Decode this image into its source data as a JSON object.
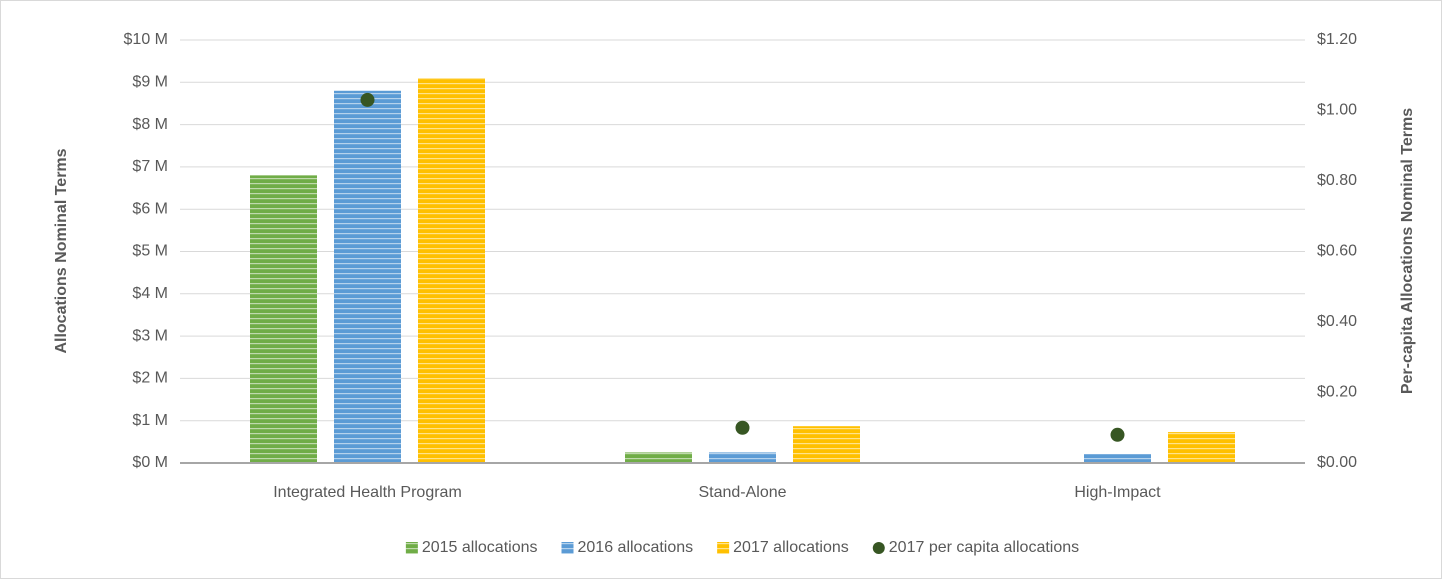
{
  "chart_data": {
    "type": "bar",
    "categories": [
      "Integrated Health Program",
      "Stand-Alone",
      "High-Impact"
    ],
    "series": [
      {
        "name": "2015 allocations",
        "color": "#70ad47",
        "type": "bar",
        "values": [
          6.8,
          0.25,
          null
        ]
      },
      {
        "name": "2016 allocations",
        "color": "#5b9bd5",
        "type": "bar",
        "values": [
          8.8,
          0.25,
          0.21
        ]
      },
      {
        "name": "2017 allocations",
        "color": "#ffc000",
        "type": "bar",
        "values": [
          9.1,
          0.87,
          0.73
        ]
      },
      {
        "name": "2017 per capita allocations",
        "color": "#375623",
        "type": "scatter",
        "axis": "y2",
        "values": [
          1.03,
          0.1,
          0.08
        ]
      }
    ],
    "ylabel": "Allocations Nominal Terms",
    "y2label": "Per-capita Allocations Nominal Terms",
    "ylim": [
      0,
      10
    ],
    "yticks": [
      {
        "value": 0,
        "label": "$0 M"
      },
      {
        "value": 1,
        "label": "$1 M"
      },
      {
        "value": 2,
        "label": "$2 M"
      },
      {
        "value": 3,
        "label": "$3 M"
      },
      {
        "value": 4,
        "label": "$4 M"
      },
      {
        "value": 5,
        "label": "$5 M"
      },
      {
        "value": 6,
        "label": "$6 M"
      },
      {
        "value": 7,
        "label": "$7 M"
      },
      {
        "value": 8,
        "label": "$8 M"
      },
      {
        "value": 9,
        "label": "$9 M"
      },
      {
        "value": 10,
        "label": "$10 M"
      }
    ],
    "y2lim": [
      0,
      1.2
    ],
    "y2ticks": [
      {
        "value": 0,
        "label": "$0.00"
      },
      {
        "value": 0.2,
        "label": "$0.20"
      },
      {
        "value": 0.4,
        "label": "$0.40"
      },
      {
        "value": 0.6,
        "label": "$0.60"
      },
      {
        "value": 0.8,
        "label": "$0.80"
      },
      {
        "value": 1.0,
        "label": "$1.00"
      },
      {
        "value": 1.2,
        "label": "$1.20"
      }
    ],
    "grid": true,
    "legend": "bottom"
  }
}
